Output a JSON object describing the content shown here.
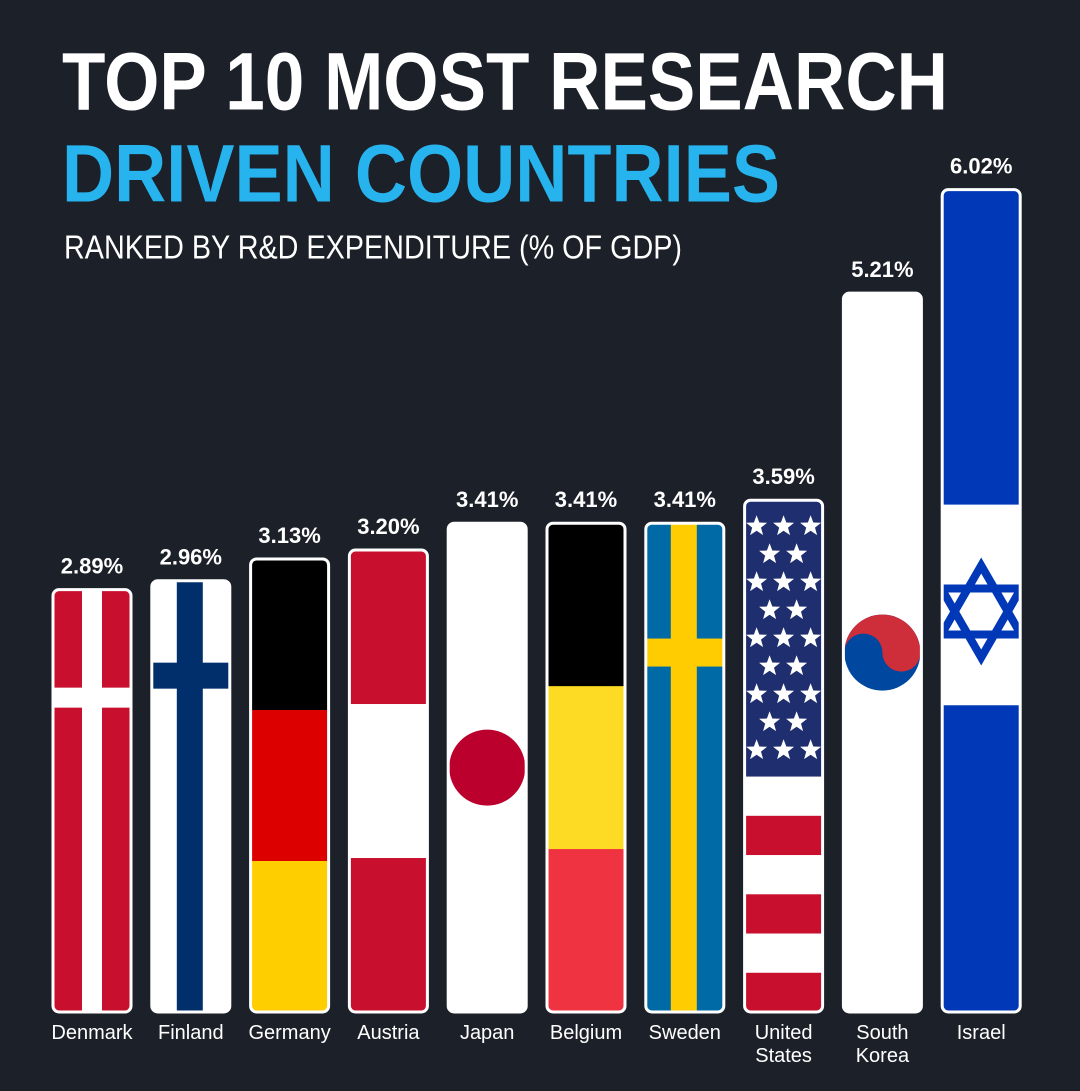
{
  "chart_data": {
    "type": "bar",
    "title": [
      "TOP 10 MOST RESEARCH",
      "DRIVEN COUNTRIES"
    ],
    "subtitle": "RANKED BY R&D EXPENDITURE (% OF GDP)",
    "categories": [
      "Denmark",
      "Finland",
      "Germany",
      "Austria",
      "Japan",
      "Belgium",
      "Sweden",
      "United States",
      "South Korea",
      "Israel"
    ],
    "values": [
      2.89,
      2.96,
      3.13,
      3.2,
      3.41,
      3.41,
      3.41,
      3.59,
      5.21,
      6.02
    ],
    "value_labels": [
      "2.89%",
      "2.96%",
      "3.13%",
      "3.20%",
      "3.41%",
      "3.41%",
      "3.41%",
      "3.59%",
      "5.21%",
      "6.02%"
    ]
  }
}
